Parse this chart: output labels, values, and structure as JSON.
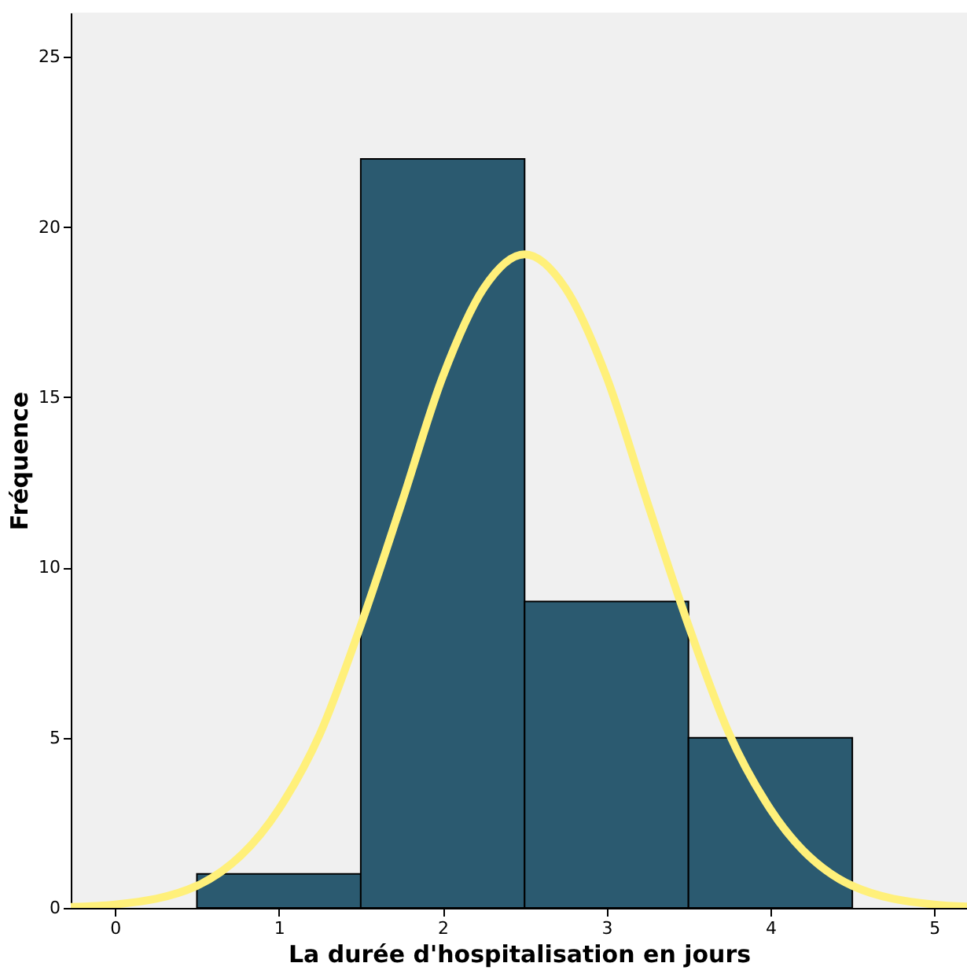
{
  "chart_data": {
    "type": "histogram",
    "xlabel": "La durée d'hospitalisation en jours",
    "ylabel": "Fréquence",
    "bins": [
      0.5,
      1.5,
      2.5,
      3.5,
      4.5
    ],
    "values": [
      1,
      22,
      9,
      5
    ],
    "color": "#2b5a70",
    "series": [
      {
        "type": "line",
        "color": "#fff07a",
        "x": [
          -0.27,
          0,
          0.5,
          1.0,
          1.25,
          1.5,
          1.75,
          2.0,
          2.25,
          2.5,
          2.75,
          3.0,
          3.25,
          3.5,
          3.75,
          4.0,
          4.5,
          5.0,
          5.2
        ],
        "values": [
          0.03,
          0.1,
          0.65,
          2.9,
          5.1,
          8.3,
          11.9,
          15.6,
          18.2,
          19.2,
          18.2,
          15.6,
          11.9,
          8.3,
          5.1,
          2.9,
          0.65,
          0.1,
          0.04
        ]
      }
    ],
    "xlim": [
      -0.27,
      5.2
    ],
    "xticks": [
      0,
      1,
      2,
      3,
      4,
      5
    ],
    "ylim": [
      0,
      26.3
    ],
    "yticks": [
      0,
      5,
      10,
      15,
      20,
      25
    ],
    "grid": false
  }
}
